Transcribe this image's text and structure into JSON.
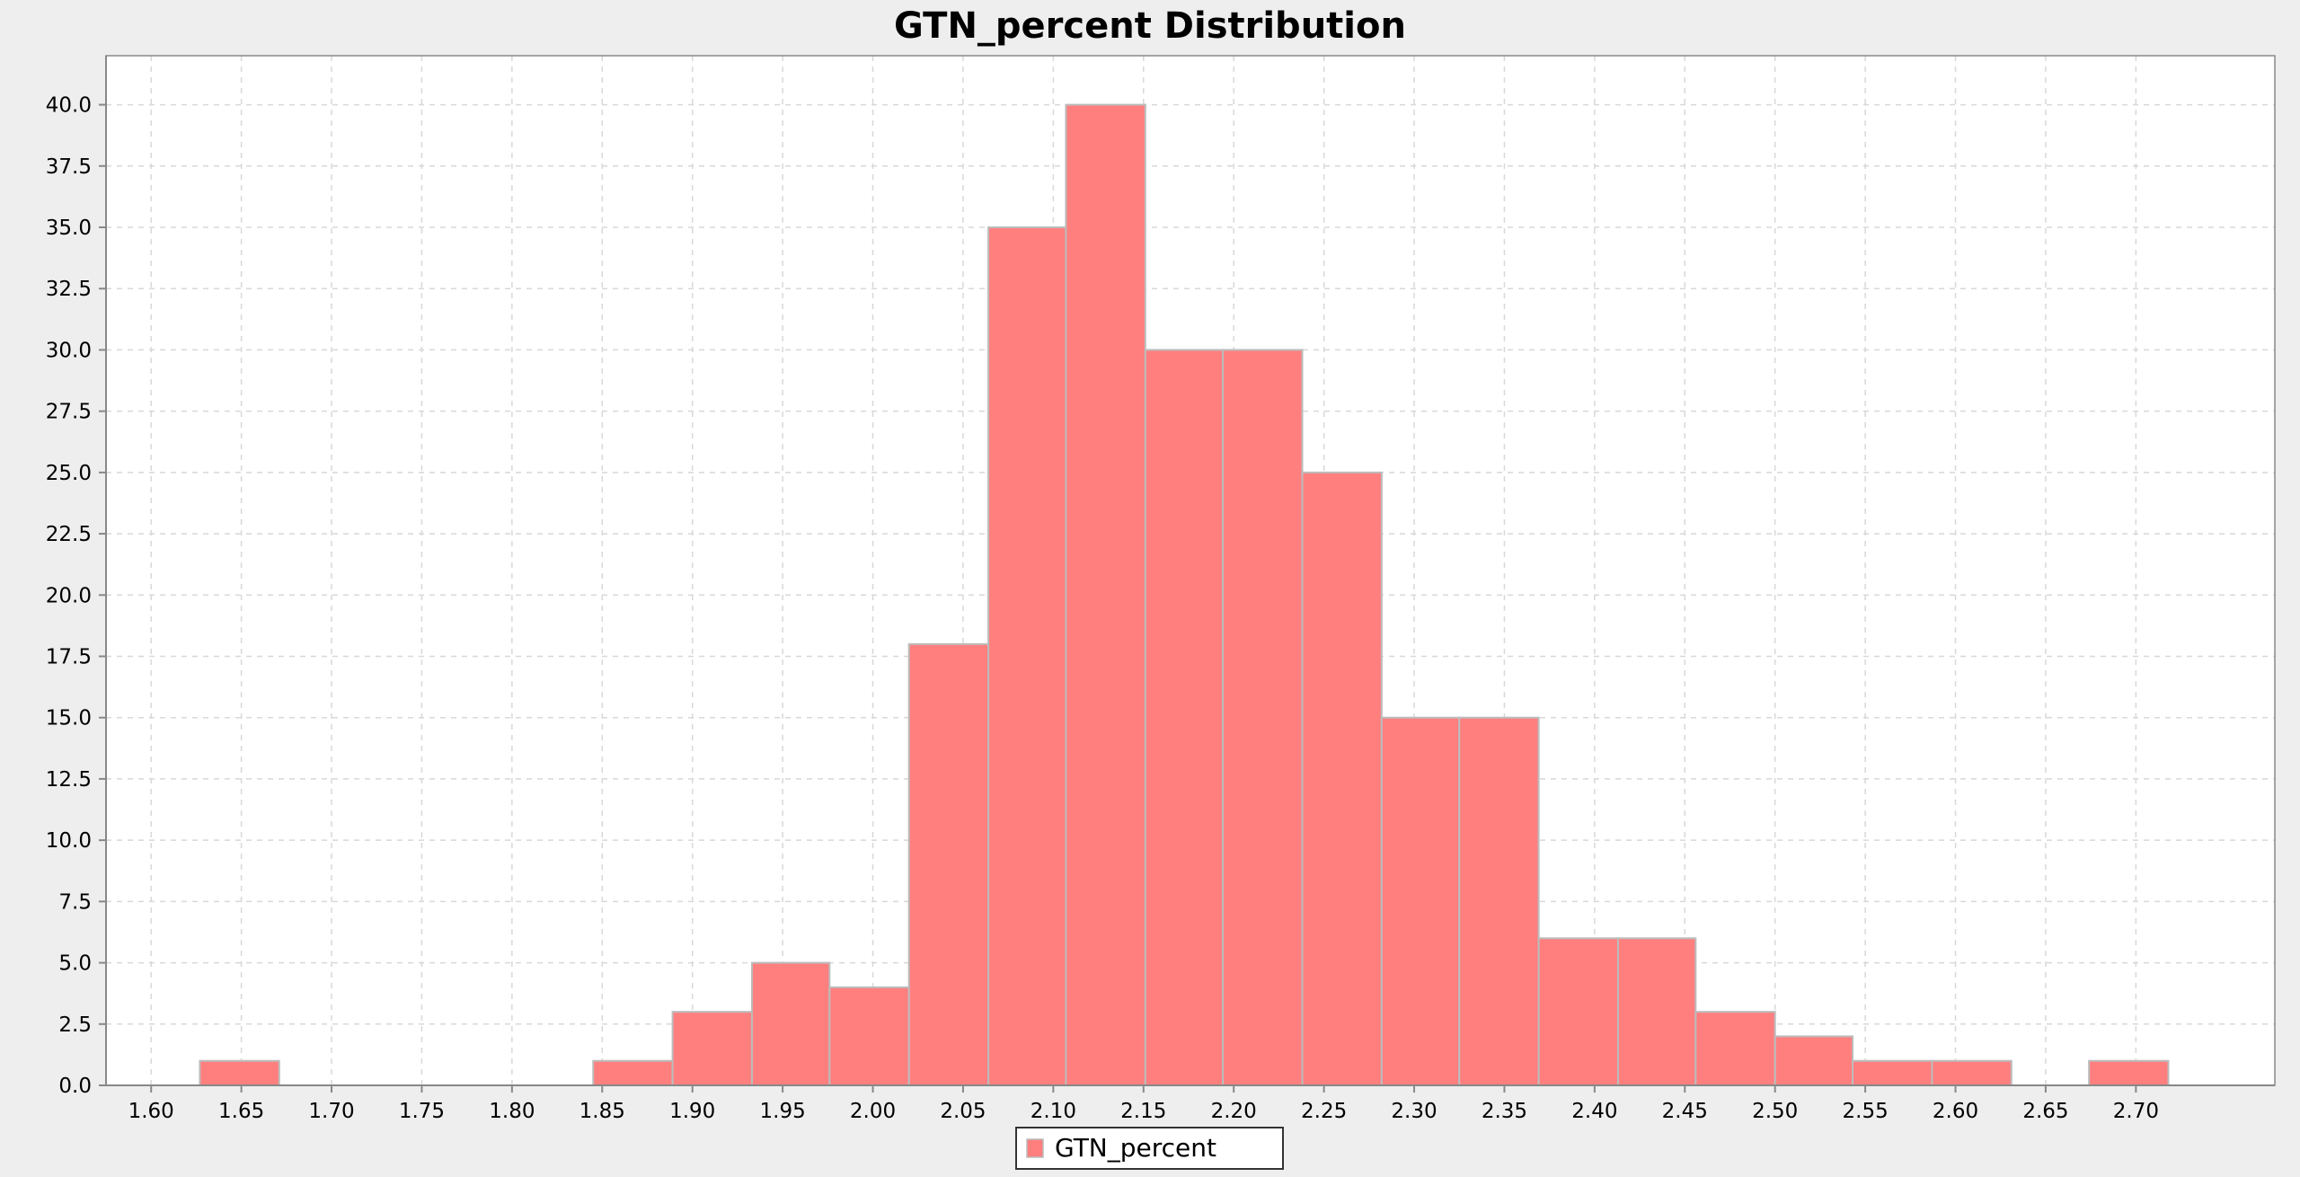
{
  "chart_data": {
    "type": "bar",
    "title": "GTN_percent Distribution",
    "xlabel": "",
    "ylabel": "",
    "bin_width": 0.0437,
    "bins": [
      {
        "x0": 1.627,
        "x1": 1.671,
        "count": 1
      },
      {
        "x0": 1.671,
        "x1": 1.715,
        "count": 0
      },
      {
        "x0": 1.715,
        "x1": 1.758,
        "count": 0
      },
      {
        "x0": 1.758,
        "x1": 1.802,
        "count": 0
      },
      {
        "x0": 1.802,
        "x1": 1.845,
        "count": 0
      },
      {
        "x0": 1.845,
        "x1": 1.889,
        "count": 1
      },
      {
        "x0": 1.889,
        "x1": 1.933,
        "count": 3
      },
      {
        "x0": 1.933,
        "x1": 1.976,
        "count": 5
      },
      {
        "x0": 1.976,
        "x1": 2.02,
        "count": 4
      },
      {
        "x0": 2.02,
        "x1": 2.064,
        "count": 18
      },
      {
        "x0": 2.064,
        "x1": 2.107,
        "count": 35
      },
      {
        "x0": 2.107,
        "x1": 2.151,
        "count": 40
      },
      {
        "x0": 2.151,
        "x1": 2.194,
        "count": 30
      },
      {
        "x0": 2.194,
        "x1": 2.238,
        "count": 30
      },
      {
        "x0": 2.238,
        "x1": 2.282,
        "count": 25
      },
      {
        "x0": 2.282,
        "x1": 2.325,
        "count": 15
      },
      {
        "x0": 2.325,
        "x1": 2.369,
        "count": 15
      },
      {
        "x0": 2.369,
        "x1": 2.413,
        "count": 6
      },
      {
        "x0": 2.413,
        "x1": 2.456,
        "count": 6
      },
      {
        "x0": 2.456,
        "x1": 2.5,
        "count": 3
      },
      {
        "x0": 2.5,
        "x1": 2.543,
        "count": 2
      },
      {
        "x0": 2.543,
        "x1": 2.587,
        "count": 1
      },
      {
        "x0": 2.587,
        "x1": 2.631,
        "count": 1
      },
      {
        "x0": 2.631,
        "x1": 2.674,
        "count": 0
      },
      {
        "x0": 2.674,
        "x1": 2.718,
        "count": 1
      }
    ],
    "series": [
      {
        "name": "GTN_percent",
        "color": "#ff7f7f"
      }
    ],
    "x_ticks": [
      "1.60",
      "1.65",
      "1.70",
      "1.75",
      "1.80",
      "1.85",
      "1.90",
      "1.95",
      "2.00",
      "2.05",
      "2.10",
      "2.15",
      "2.20",
      "2.25",
      "2.30",
      "2.35",
      "2.40",
      "2.45",
      "2.50",
      "2.55",
      "2.60",
      "2.65",
      "2.70"
    ],
    "y_ticks": [
      "0.0",
      "2.5",
      "5.0",
      "7.5",
      "10.0",
      "12.5",
      "15.0",
      "17.5",
      "20.0",
      "22.5",
      "25.0",
      "27.5",
      "30.0",
      "32.5",
      "35.0",
      "37.5",
      "40.0"
    ],
    "xlim": [
      1.575,
      2.777
    ],
    "ylim": [
      0,
      42
    ],
    "grid": true,
    "legend_position": "bottom-center",
    "colors": {
      "bar_fill": "#ff7f7f",
      "bar_stroke": "#bcbcbc",
      "plot_background": "#ffffff",
      "page_background": "#eeeeee",
      "grid": "#d8d8d8",
      "axis": "#888888",
      "text": "#000000"
    }
  }
}
